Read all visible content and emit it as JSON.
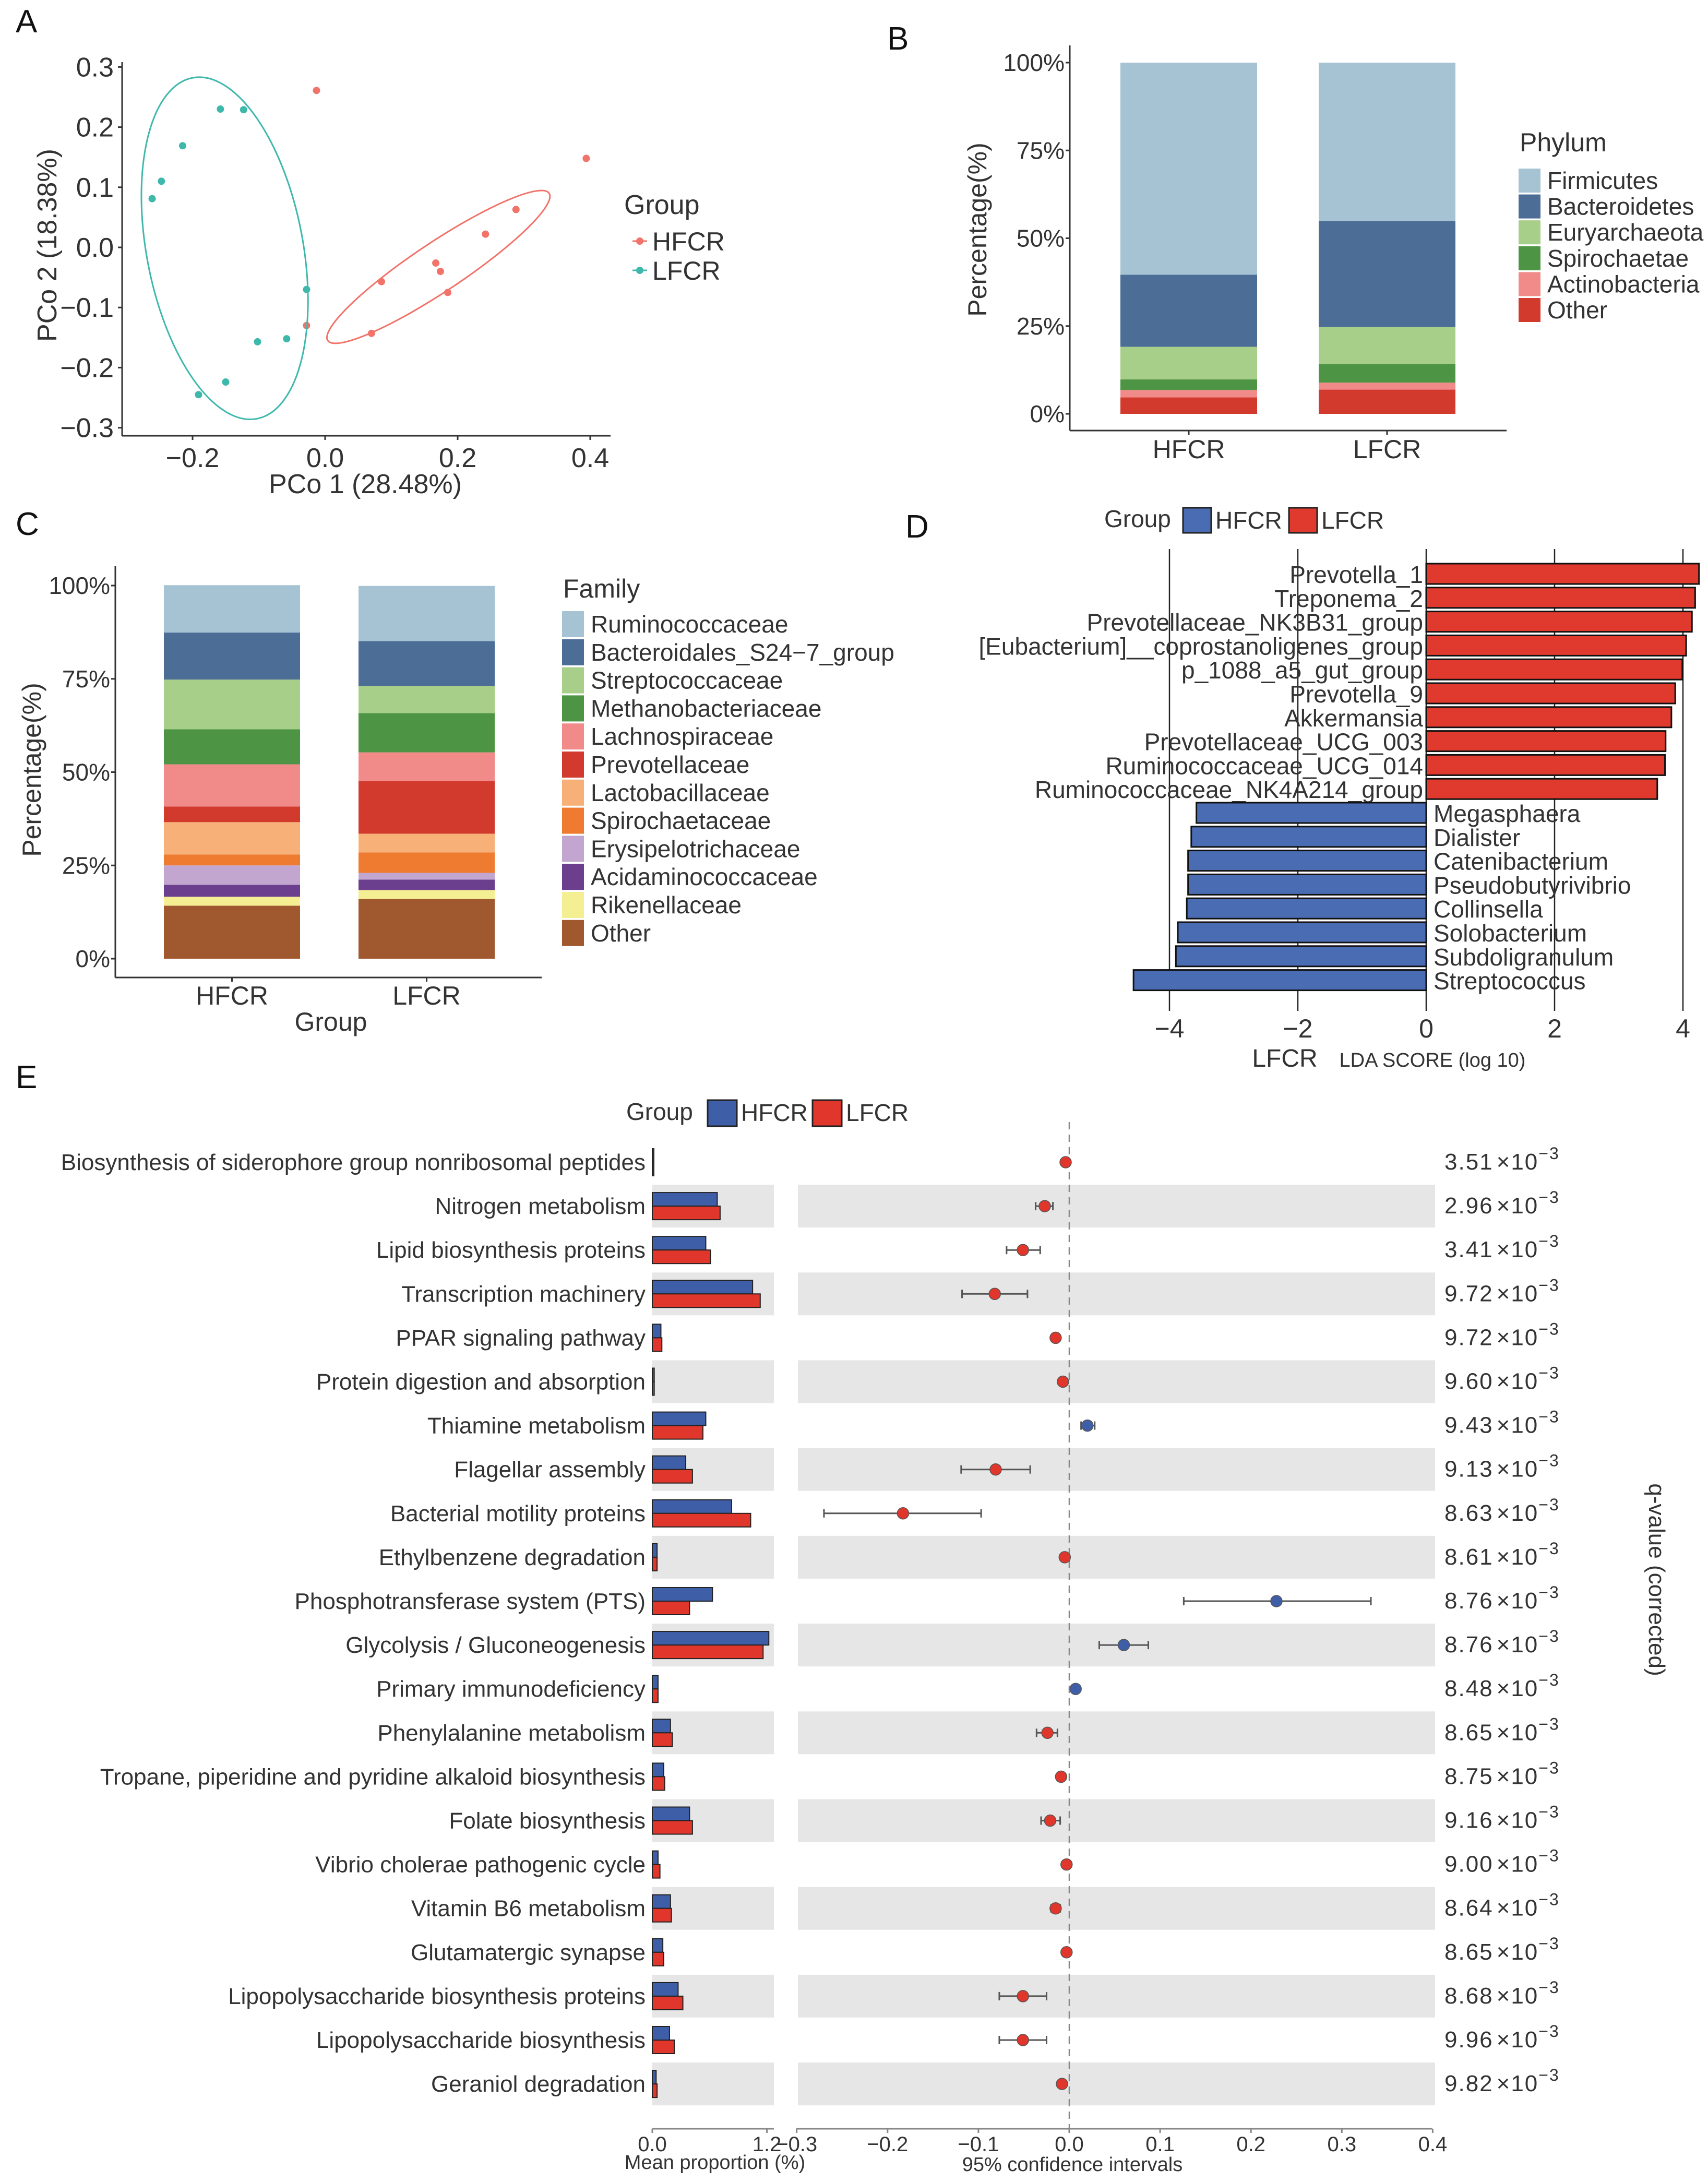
{
  "panel_labels": [
    "A",
    "B",
    "C",
    "D",
    "E"
  ],
  "chart_data": [
    {
      "type": "scatter",
      "xlabel": "PCo 1 (28.48%)",
      "ylabel": "PCo 2 (18.38%)",
      "xticks": [
        -0.2,
        0.0,
        0.2,
        0.4
      ],
      "xtick_labels": [
        "−0.2",
        "0.0",
        "0.2",
        "0.4"
      ],
      "yticks": [
        0.3,
        0.2,
        0.1,
        0.0,
        -0.1,
        -0.2,
        -0.3
      ],
      "ytick_labels": [
        "0.3",
        "0.2",
        "0.1",
        "0.0",
        "−0.1",
        "−0.2",
        "−0.3"
      ],
      "legend_title": "Group",
      "legend_position": "right",
      "series": [
        {
          "name": "HFCR",
          "color": "#f1736a",
          "points": [
            [
              -0.013,
              0.261
            ],
            [
              0.394,
              0.148
            ],
            [
              0.288,
              0.063
            ],
            [
              0.242,
              0.022
            ],
            [
              0.167,
              -0.026
            ],
            [
              0.174,
              -0.04
            ],
            [
              0.085,
              -0.057
            ],
            [
              0.185,
              -0.075
            ],
            [
              -0.028,
              -0.13
            ],
            [
              0.07,
              -0.143
            ]
          ],
          "ellipse": {
            "major_axis_ends": [
              [
                0.338,
                0.09
              ],
              [
                0.004,
                -0.155
              ]
            ],
            "minor_semi_axis": 0.037
          }
        },
        {
          "name": "LFCR",
          "color": "#3fb8ac",
          "points": [
            [
              -0.158,
              0.23
            ],
            [
              -0.123,
              0.229
            ],
            [
              -0.215,
              0.169
            ],
            [
              -0.247,
              0.11
            ],
            [
              -0.261,
              0.081
            ],
            [
              -0.028,
              -0.07
            ],
            [
              -0.102,
              -0.157
            ],
            [
              -0.058,
              -0.152
            ],
            [
              -0.15,
              -0.224
            ],
            [
              -0.191,
              -0.245
            ]
          ],
          "ellipse": {
            "major_axis_ends": [
              [
                -0.2,
                0.282
              ],
              [
                -0.103,
                -0.285
              ]
            ],
            "minor_semi_axis": 0.118
          }
        }
      ]
    },
    {
      "type": "bar",
      "stacked": true,
      "ylabel": "Percentage(%)",
      "categories": [
        "HFCR",
        "LFCR"
      ],
      "yticks": [
        0,
        25,
        50,
        75,
        100
      ],
      "ytick_labels": [
        "0%",
        "25%",
        "50%",
        "75%",
        "100%"
      ],
      "ylim": [
        0,
        100
      ],
      "legend_title": "Phylum",
      "legend_position": "right",
      "series": [
        {
          "name": "Firmicutes",
          "color": "#a6c3d3",
          "values": [
            60.4,
            45.1
          ]
        },
        {
          "name": "Bacteroidetes",
          "color": "#4b6d96",
          "values": [
            20.5,
            30.2
          ]
        },
        {
          "name": "Euryarchaeota",
          "color": "#a8cf89",
          "values": [
            9.3,
            10.5
          ]
        },
        {
          "name": "Spirochaetae",
          "color": "#4d9444",
          "values": [
            3.0,
            5.3
          ]
        },
        {
          "name": "Actinobacteria",
          "color": "#f08b8a",
          "values": [
            2.1,
            2.0
          ]
        },
        {
          "name": "Other",
          "color": "#d23a2e",
          "values": [
            4.7,
            6.9
          ]
        }
      ]
    },
    {
      "type": "bar",
      "stacked": true,
      "xlabel": "Group",
      "ylabel": "Percentage(%)",
      "categories": [
        "HFCR",
        "LFCR"
      ],
      "yticks": [
        0,
        25,
        50,
        75,
        100
      ],
      "ytick_labels": [
        "0%",
        "25%",
        "50%",
        "75%",
        "100%"
      ],
      "ylim": [
        0,
        100
      ],
      "legend_title": "Family",
      "legend_position": "right",
      "series": [
        {
          "name": "Ruminococcaceae",
          "color": "#a6c3d3",
          "values": [
            12.7,
            14.8
          ]
        },
        {
          "name": "Bacteroidales_S24−7_group",
          "color": "#4b6d96",
          "values": [
            12.6,
            12.0
          ]
        },
        {
          "name": "Streptococcaceae",
          "color": "#a8cf89",
          "values": [
            13.3,
            7.3
          ]
        },
        {
          "name": "Methanobacteriaceae",
          "color": "#4d9444",
          "values": [
            9.4,
            10.5
          ]
        },
        {
          "name": "Lachnospiraceae",
          "color": "#f08b8a",
          "values": [
            11.3,
            7.7
          ]
        },
        {
          "name": "Prevotellaceae",
          "color": "#d23a2e",
          "values": [
            4.2,
            14.1
          ]
        },
        {
          "name": "Lactobacillaceae",
          "color": "#f6b078",
          "values": [
            8.7,
            5.0
          ]
        },
        {
          "name": "Spirochaetaceae",
          "color": "#ef7b30",
          "values": [
            2.9,
            5.5
          ]
        },
        {
          "name": "Erysipelotrichaceae",
          "color": "#c2a6cf",
          "values": [
            5.2,
            1.8
          ]
        },
        {
          "name": "Acidaminococcaceae",
          "color": "#6b3e8e",
          "values": [
            3.2,
            2.8
          ]
        },
        {
          "name": "Rikenellaceae",
          "color": "#f5ef93",
          "values": [
            2.4,
            2.4
          ]
        },
        {
          "name": "Other",
          "color": "#a0582f",
          "values": [
            14.2,
            16.0
          ]
        }
      ]
    },
    {
      "type": "bar",
      "orientation": "horizontal",
      "legend_title": "Group",
      "legend_position": "top",
      "groups": [
        {
          "name": "HFCR",
          "color": "#4a6cb3"
        },
        {
          "name": "LFCR",
          "color": "#e03a2f"
        }
      ],
      "xlabel_group": "LFCR",
      "xlabel": "LDA SCORE (log 10)",
      "xticks": [
        -4,
        -2,
        0,
        2,
        4
      ],
      "xtick_labels": [
        "−4",
        "−2",
        "0",
        "2",
        "4"
      ],
      "xlim": [
        -4.6,
        4.3
      ],
      "features": [
        {
          "name": "Prevotella_1",
          "group": "LFCR",
          "lda": 4.25
        },
        {
          "name": "Treponema_2",
          "group": "LFCR",
          "lda": 4.19
        },
        {
          "name": "Prevotellaceae_NK3B31_group",
          "group": "LFCR",
          "lda": 4.14
        },
        {
          "name": "[Eubacterium]__coprostanoligenes_group",
          "group": "LFCR",
          "lda": 4.05
        },
        {
          "name": "p_1088_a5_gut_group",
          "group": "LFCR",
          "lda": 3.99
        },
        {
          "name": "Prevotella_9",
          "group": "LFCR",
          "lda": 3.88
        },
        {
          "name": "Akkermansia",
          "group": "LFCR",
          "lda": 3.82
        },
        {
          "name": "Prevotellaceae_UCG_003",
          "group": "LFCR",
          "lda": 3.73
        },
        {
          "name": "Ruminococcaceae_UCG_014",
          "group": "LFCR",
          "lda": 3.72
        },
        {
          "name": "Ruminococcaceae_NK4A214_group",
          "group": "LFCR",
          "lda": 3.6
        },
        {
          "name": "Megasphaera",
          "group": "HFCR",
          "lda": -3.58
        },
        {
          "name": "Dialister",
          "group": "HFCR",
          "lda": -3.66
        },
        {
          "name": "Catenibacterium",
          "group": "HFCR",
          "lda": -3.71
        },
        {
          "name": "Pseudobutyrivibrio",
          "group": "HFCR",
          "lda": -3.71
        },
        {
          "name": "Collinsella",
          "group": "HFCR",
          "lda": -3.73
        },
        {
          "name": "Solobacterium",
          "group": "HFCR",
          "lda": -3.87
        },
        {
          "name": "Subdoligranulum",
          "group": "HFCR",
          "lda": -3.9
        },
        {
          "name": "Streptococcus",
          "group": "HFCR",
          "lda": -4.56
        }
      ]
    },
    {
      "type": "bar",
      "subtype": "extended-error-bar",
      "legend_title": "Group",
      "legend_position": "top",
      "groups": [
        {
          "name": "HFCR",
          "color": "#3f5ea8"
        },
        {
          "name": "LFCR",
          "color": "#e0362c"
        }
      ],
      "left_xlabel": "Mean proportion (%)",
      "left_xticks": [
        0.0,
        1.2
      ],
      "left_xtick_labels": [
        "0.0",
        "1.2"
      ],
      "right_xlabel": "95% confidence intervals",
      "right_xticks": [
        -0.3,
        -0.2,
        -0.1,
        0.0,
        0.1,
        0.2,
        0.3,
        0.4
      ],
      "right_xtick_labels": [
        "−0.3",
        "−0.2",
        "−0.1",
        "0.0",
        "0.1",
        "0.2",
        "0.3",
        "0.4"
      ],
      "qvalue_label": "q-value (corrected)",
      "q_times": "×10",
      "q_exponent": "−3",
      "features": [
        {
          "name": "Biosynthesis of siderophore group nonribosomal peptides",
          "hfcr": 0.005,
          "lfcr": 0.005,
          "diff": -0.004,
          "ci": [
            -0.006,
            -0.002
          ],
          "q": "3.51"
        },
        {
          "name": "Nitrogen metabolism",
          "hfcr": 0.68,
          "lfcr": 0.71,
          "diff": -0.027,
          "ci": [
            -0.037,
            -0.018
          ],
          "q": "2.96"
        },
        {
          "name": "Lipid biosynthesis proteins",
          "hfcr": 0.56,
          "lfcr": 0.61,
          "diff": -0.051,
          "ci": [
            -0.069,
            -0.032
          ],
          "q": "3.41"
        },
        {
          "name": "Transcription machinery",
          "hfcr": 1.05,
          "lfcr": 1.13,
          "diff": -0.082,
          "ci": [
            -0.118,
            -0.046
          ],
          "q": "9.72"
        },
        {
          "name": "PPAR signaling pathway",
          "hfcr": 0.09,
          "lfcr": 0.1,
          "diff": -0.015,
          "ci": [
            -0.019,
            -0.011
          ],
          "q": "9.72"
        },
        {
          "name": "Protein digestion and absorption",
          "hfcr": 0.02,
          "lfcr": 0.02,
          "diff": -0.007,
          "ci": [
            -0.009,
            -0.005
          ],
          "q": "9.60"
        },
        {
          "name": "Thiamine metabolism",
          "hfcr": 0.56,
          "lfcr": 0.53,
          "diff": 0.02,
          "ci": [
            0.013,
            0.028
          ],
          "q": "9.43"
        },
        {
          "name": "Flagellar assembly",
          "hfcr": 0.35,
          "lfcr": 0.42,
          "diff": -0.081,
          "ci": [
            -0.119,
            -0.043
          ],
          "q": "9.13"
        },
        {
          "name": "Bacterial motility proteins",
          "hfcr": 0.83,
          "lfcr": 1.03,
          "diff": -0.183,
          "ci": [
            -0.27,
            -0.097
          ],
          "q": "8.63"
        },
        {
          "name": "Ethylbenzene degradation",
          "hfcr": 0.05,
          "lfcr": 0.05,
          "diff": -0.005,
          "ci": [
            -0.007,
            -0.003
          ],
          "q": "8.61"
        },
        {
          "name": "Phosphotransferase system (PTS)",
          "hfcr": 0.63,
          "lfcr": 0.39,
          "diff": 0.228,
          "ci": [
            0.126,
            0.332
          ],
          "q": "8.76"
        },
        {
          "name": "Glycolysis / Gluconeogenesis",
          "hfcr": 1.22,
          "lfcr": 1.16,
          "diff": 0.06,
          "ci": [
            0.033,
            0.087
          ],
          "q": "8.76"
        },
        {
          "name": "Primary immunodeficiency",
          "hfcr": 0.06,
          "lfcr": 0.06,
          "diff": 0.007,
          "ci": [
            0.005,
            0.009
          ],
          "q": "8.48"
        },
        {
          "name": "Phenylalanine metabolism",
          "hfcr": 0.19,
          "lfcr": 0.21,
          "diff": -0.024,
          "ci": [
            -0.036,
            -0.013
          ],
          "q": "8.65"
        },
        {
          "name": "Tropane, piperidine and pyridine alkaloid biosynthesis",
          "hfcr": 0.12,
          "lfcr": 0.13,
          "diff": -0.009,
          "ci": [
            -0.012,
            -0.006
          ],
          "q": "8.75"
        },
        {
          "name": "Folate biosynthesis",
          "hfcr": 0.39,
          "lfcr": 0.42,
          "diff": -0.021,
          "ci": [
            -0.031,
            -0.01
          ],
          "q": "9.16"
        },
        {
          "name": "Vibrio cholerae pathogenic cycle",
          "hfcr": 0.06,
          "lfcr": 0.08,
          "diff": -0.003,
          "ci": [
            -0.005,
            -0.001
          ],
          "q": "9.00"
        },
        {
          "name": "Vitamin B6 metabolism",
          "hfcr": 0.19,
          "lfcr": 0.2,
          "diff": -0.015,
          "ci": [
            -0.02,
            -0.01
          ],
          "q": "8.64"
        },
        {
          "name": "Glutamatergic synapse",
          "hfcr": 0.11,
          "lfcr": 0.12,
          "diff": -0.003,
          "ci": [
            -0.005,
            -0.001
          ],
          "q": "8.65"
        },
        {
          "name": "Lipopolysaccharide biosynthesis proteins",
          "hfcr": 0.27,
          "lfcr": 0.32,
          "diff": -0.051,
          "ci": [
            -0.077,
            -0.025
          ],
          "q": "8.68"
        },
        {
          "name": "Lipopolysaccharide biosynthesis",
          "hfcr": 0.18,
          "lfcr": 0.23,
          "diff": -0.051,
          "ci": [
            -0.077,
            -0.025
          ],
          "q": "9.96"
        },
        {
          "name": "Geraniol degradation",
          "hfcr": 0.04,
          "lfcr": 0.05,
          "diff": -0.008,
          "ci": [
            -0.01,
            -0.006
          ],
          "q": "9.82"
        }
      ]
    }
  ]
}
